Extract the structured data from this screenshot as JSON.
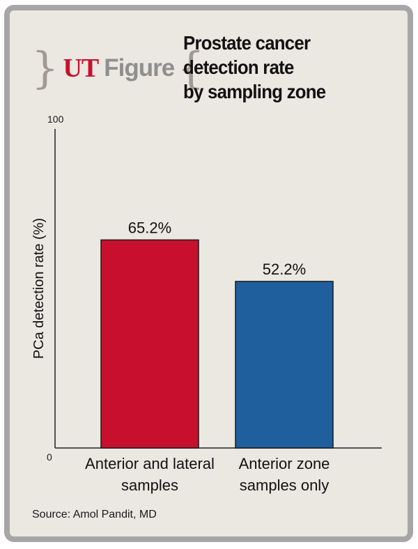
{
  "brand": {
    "left_bracket": "}",
    "ut": "UT",
    "figure": "Figure",
    "right_bracket": "{"
  },
  "source": "Source: Amol Pandit, MD",
  "colors": {
    "bar_1": "#c8102e",
    "bar_2": "#1f5f9e",
    "brand_red": "#c8102e",
    "frame": "#a6a6a6",
    "panel": "#ebe7e1"
  },
  "chart_data": {
    "type": "bar",
    "title": "Prostate cancer detection rate by sampling zone",
    "title_lines": [
      "Prostate cancer",
      "detection rate",
      "by sampling zone"
    ],
    "categories": [
      "Anterior and lateral samples",
      "Anterior zone samples only"
    ],
    "category_lines": [
      [
        "Anterior and lateral",
        "samples"
      ],
      [
        "Anterior zone",
        "samples only"
      ]
    ],
    "values": [
      65.2,
      52.2
    ],
    "data_labels": [
      "65.2%",
      "52.2%"
    ],
    "ylabel": "PCa detection rate (%)",
    "xlabel": "",
    "ylim": [
      0,
      100
    ],
    "yticks": [
      "0",
      "100"
    ],
    "grid": false
  }
}
